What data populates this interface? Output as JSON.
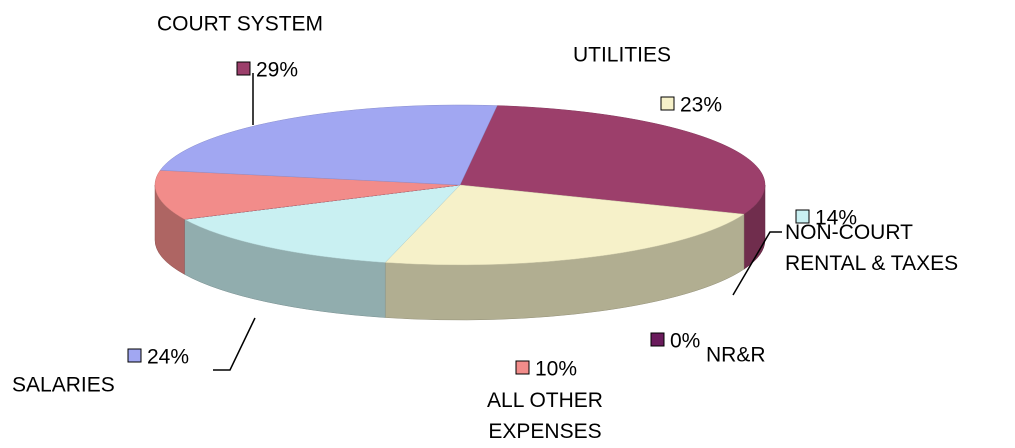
{
  "chart_data": {
    "type": "pie",
    "categories": [
      "COURT SYSTEM",
      "UTILITIES",
      "NON-COURT RENTAL & TAXES",
      "NR&R",
      "ALL OTHER EXPENSES",
      "SALARIES"
    ],
    "values": [
      29,
      23,
      14,
      0,
      10,
      24
    ],
    "value_labels": [
      "29%",
      "23%",
      "14%",
      "0%",
      "10%",
      "24%"
    ],
    "colors": [
      "#9c3f6b",
      "#f6f1c9",
      "#c9f0f2",
      "#6a1b5c",
      "#f28c8a",
      "#a1a7f2"
    ]
  }
}
